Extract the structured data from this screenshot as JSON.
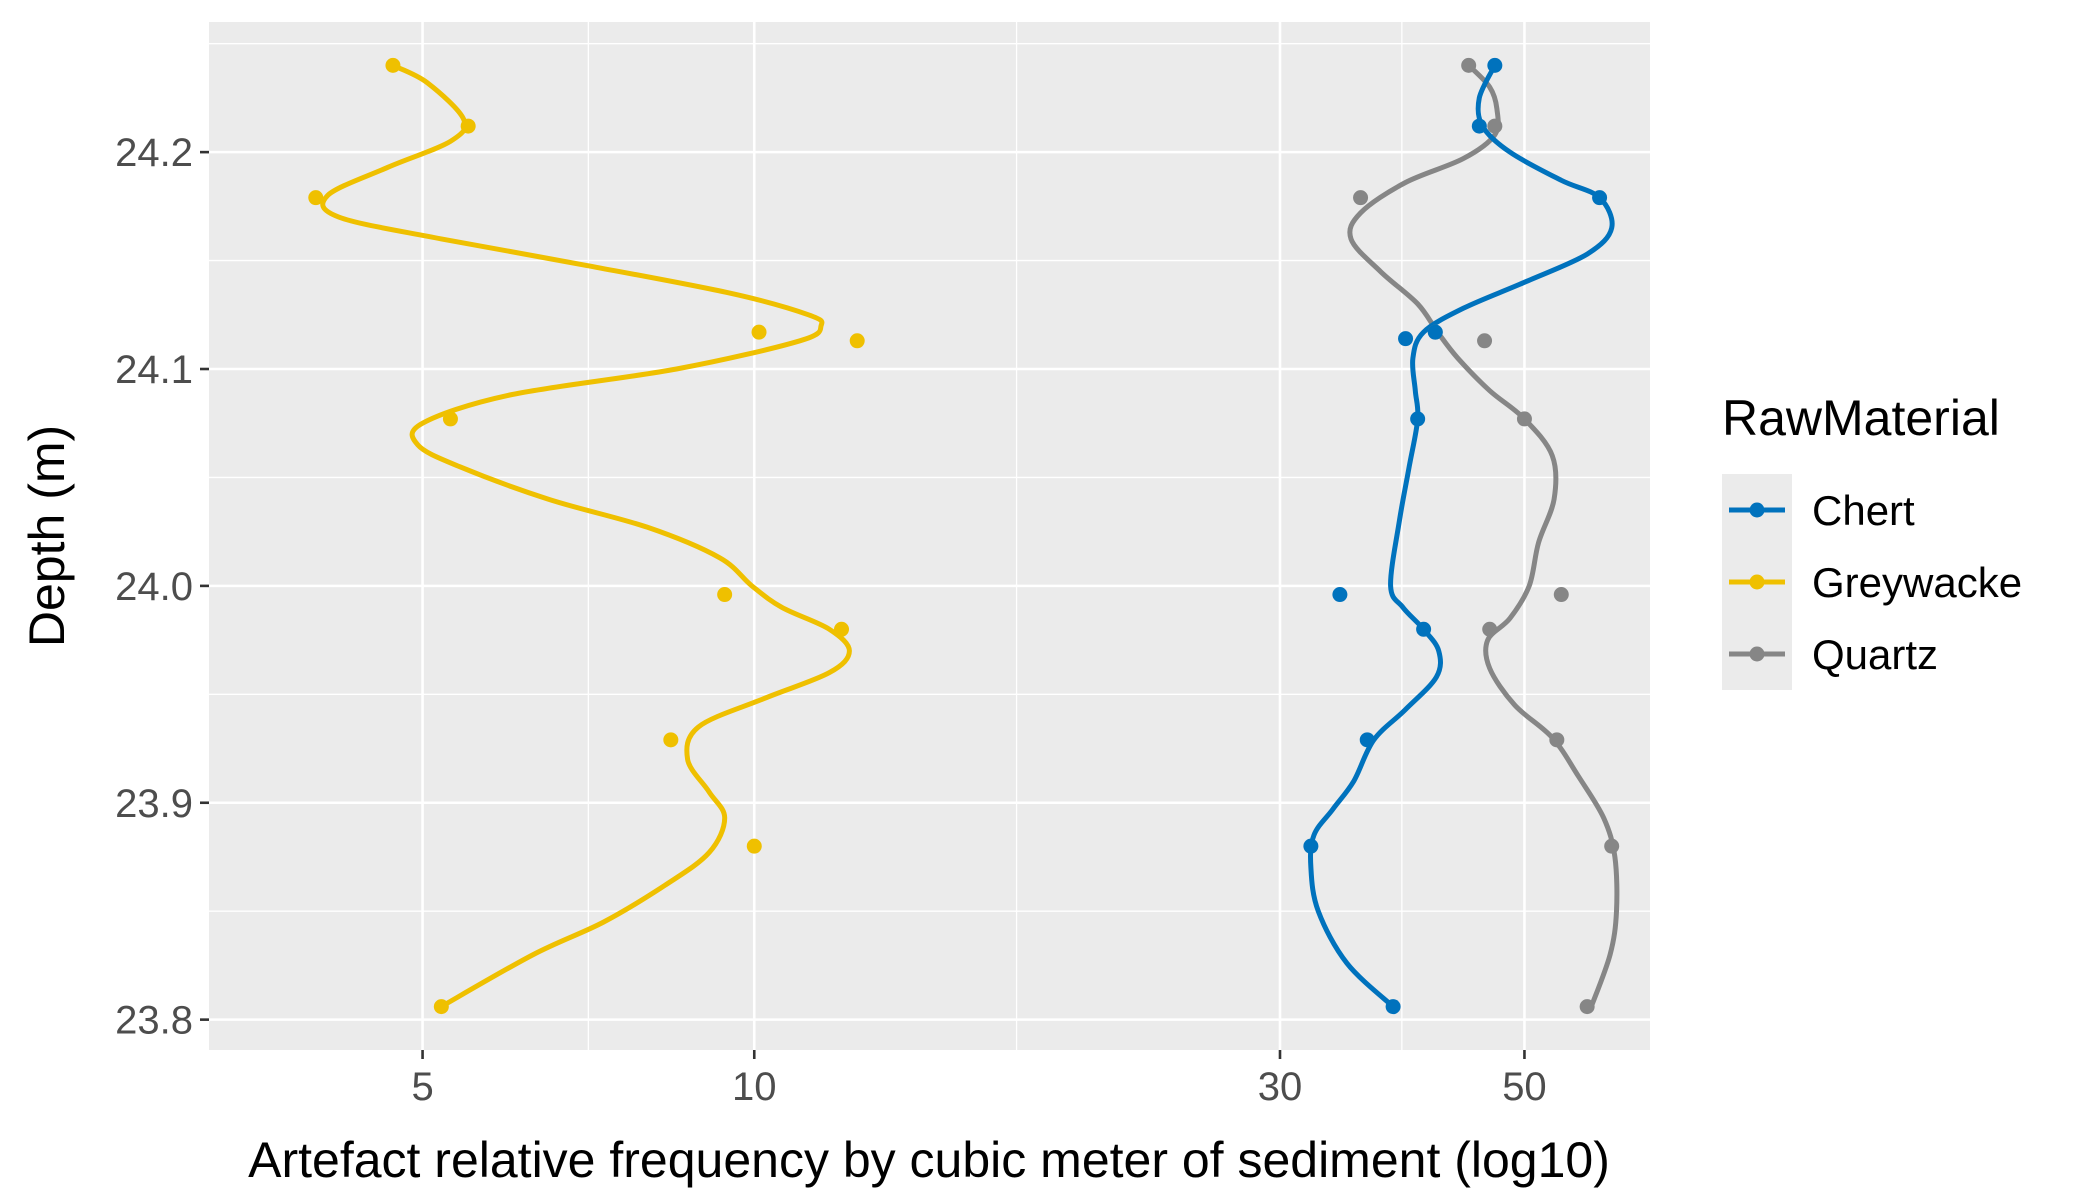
{
  "chart_data": {
    "type": "scatter",
    "xlabel": "Artefact relative frequency by cubic meter of sediment (log10)",
    "ylabel": "Depth (m)",
    "x_scale": "log10",
    "xlim": [
      3.2,
      65
    ],
    "ylim": [
      23.786,
      24.26
    ],
    "x_ticks": [
      5,
      10,
      30,
      50
    ],
    "x_minor_ticks": [
      7.07,
      17.3,
      38.7
    ],
    "y_ticks": [
      23.8,
      23.9,
      24.0,
      24.1,
      24.2
    ],
    "y_tick_labels": [
      "23.8",
      "23.9",
      "24.0",
      "24.1",
      "24.2"
    ],
    "y_minor_ticks": [
      23.85,
      23.95,
      24.05,
      24.15,
      24.25
    ],
    "grid": true,
    "legend": {
      "title": "RawMaterial",
      "position": "right"
    },
    "series": [
      {
        "name": "Chert",
        "color": "#0072BD",
        "points": [
          [
            47.0,
            24.24
          ],
          [
            45.5,
            24.212
          ],
          [
            58.5,
            24.179
          ],
          [
            39.0,
            24.114
          ],
          [
            41.5,
            24.117
          ],
          [
            40.0,
            24.077
          ],
          [
            34.0,
            23.996
          ],
          [
            40.5,
            23.98
          ],
          [
            36.0,
            23.929
          ],
          [
            32.0,
            23.88
          ],
          [
            38.0,
            23.806
          ]
        ],
        "curve": [
          [
            47.0,
            24.24
          ],
          [
            45.5,
            24.225
          ],
          [
            45.8,
            24.212
          ],
          [
            48.5,
            24.2
          ],
          [
            54.0,
            24.187
          ],
          [
            58.5,
            24.179
          ],
          [
            60.0,
            24.165
          ],
          [
            57.0,
            24.153
          ],
          [
            50.0,
            24.14
          ],
          [
            44.0,
            24.128
          ],
          [
            40.5,
            24.117
          ],
          [
            39.6,
            24.105
          ],
          [
            39.8,
            24.09
          ],
          [
            40.0,
            24.077
          ],
          [
            39.3,
            24.055
          ],
          [
            38.5,
            24.03
          ],
          [
            37.8,
            24.0
          ],
          [
            38.8,
            23.99
          ],
          [
            40.5,
            23.98
          ],
          [
            41.8,
            23.97
          ],
          [
            41.6,
            23.958
          ],
          [
            39.0,
            23.943
          ],
          [
            36.5,
            23.929
          ],
          [
            35.0,
            23.91
          ],
          [
            33.5,
            23.897
          ],
          [
            32.2,
            23.885
          ],
          [
            32.0,
            23.87
          ],
          [
            32.5,
            23.85
          ],
          [
            34.5,
            23.826
          ],
          [
            38.0,
            23.806
          ]
        ]
      },
      {
        "name": "Greywacke",
        "color": "#EFC000",
        "points": [
          [
            4.7,
            24.24
          ],
          [
            5.5,
            24.212
          ],
          [
            4.0,
            24.179
          ],
          [
            10.1,
            24.117
          ],
          [
            12.4,
            24.113
          ],
          [
            5.3,
            24.077
          ],
          [
            9.4,
            23.996
          ],
          [
            12.0,
            23.98
          ],
          [
            8.4,
            23.929
          ],
          [
            10.0,
            23.88
          ],
          [
            5.2,
            23.806
          ]
        ],
        "curve": [
          [
            4.7,
            24.24
          ],
          [
            5.05,
            24.232
          ],
          [
            5.45,
            24.215
          ],
          [
            5.3,
            24.205
          ],
          [
            4.65,
            24.193
          ],
          [
            4.1,
            24.18
          ],
          [
            4.2,
            24.17
          ],
          [
            5.2,
            24.16
          ],
          [
            7.0,
            24.148
          ],
          [
            9.5,
            24.135
          ],
          [
            11.2,
            24.125
          ],
          [
            11.5,
            24.12
          ],
          [
            11.0,
            24.113
          ],
          [
            8.5,
            24.1
          ],
          [
            6.0,
            24.088
          ],
          [
            5.0,
            24.075
          ],
          [
            4.95,
            24.065
          ],
          [
            5.4,
            24.055
          ],
          [
            6.5,
            24.04
          ],
          [
            8.0,
            24.027
          ],
          [
            9.3,
            24.013
          ],
          [
            9.95,
            24.0
          ],
          [
            10.6,
            23.99
          ],
          [
            11.7,
            23.98
          ],
          [
            12.2,
            23.97
          ],
          [
            11.7,
            23.96
          ],
          [
            10.2,
            23.948
          ],
          [
            8.9,
            23.935
          ],
          [
            8.7,
            23.92
          ],
          [
            9.1,
            23.905
          ],
          [
            9.4,
            23.893
          ],
          [
            9.1,
            23.877
          ],
          [
            8.3,
            23.862
          ],
          [
            7.3,
            23.845
          ],
          [
            6.3,
            23.83
          ],
          [
            5.2,
            23.806
          ]
        ]
      },
      {
        "name": "Quartz",
        "color": "#868686",
        "points": [
          [
            44.5,
            24.24
          ],
          [
            47.0,
            24.212
          ],
          [
            35.5,
            24.179
          ],
          [
            41.5,
            24.117
          ],
          [
            46.0,
            24.113
          ],
          [
            50.0,
            24.077
          ],
          [
            54.0,
            23.996
          ],
          [
            46.5,
            23.98
          ],
          [
            53.5,
            23.929
          ],
          [
            60.0,
            23.88
          ],
          [
            57.0,
            23.806
          ]
        ],
        "curve": [
          [
            44.5,
            24.24
          ],
          [
            46.5,
            24.23
          ],
          [
            47.2,
            24.22
          ],
          [
            47.0,
            24.208
          ],
          [
            44.0,
            24.197
          ],
          [
            39.0,
            24.186
          ],
          [
            35.5,
            24.172
          ],
          [
            34.8,
            24.16
          ],
          [
            37.0,
            24.145
          ],
          [
            40.0,
            24.13
          ],
          [
            41.7,
            24.117
          ],
          [
            43.5,
            24.105
          ],
          [
            46.5,
            24.09
          ],
          [
            50.0,
            24.077
          ],
          [
            53.0,
            24.06
          ],
          [
            53.2,
            24.04
          ],
          [
            51.5,
            24.02
          ],
          [
            50.5,
            24.0
          ],
          [
            48.5,
            23.985
          ],
          [
            46.3,
            23.975
          ],
          [
            46.5,
            23.962
          ],
          [
            49.0,
            23.945
          ],
          [
            53.0,
            23.93
          ],
          [
            56.0,
            23.912
          ],
          [
            59.0,
            23.893
          ],
          [
            60.4,
            23.875
          ],
          [
            60.6,
            23.85
          ],
          [
            59.8,
            23.83
          ],
          [
            57.5,
            23.806
          ]
        ]
      }
    ]
  }
}
